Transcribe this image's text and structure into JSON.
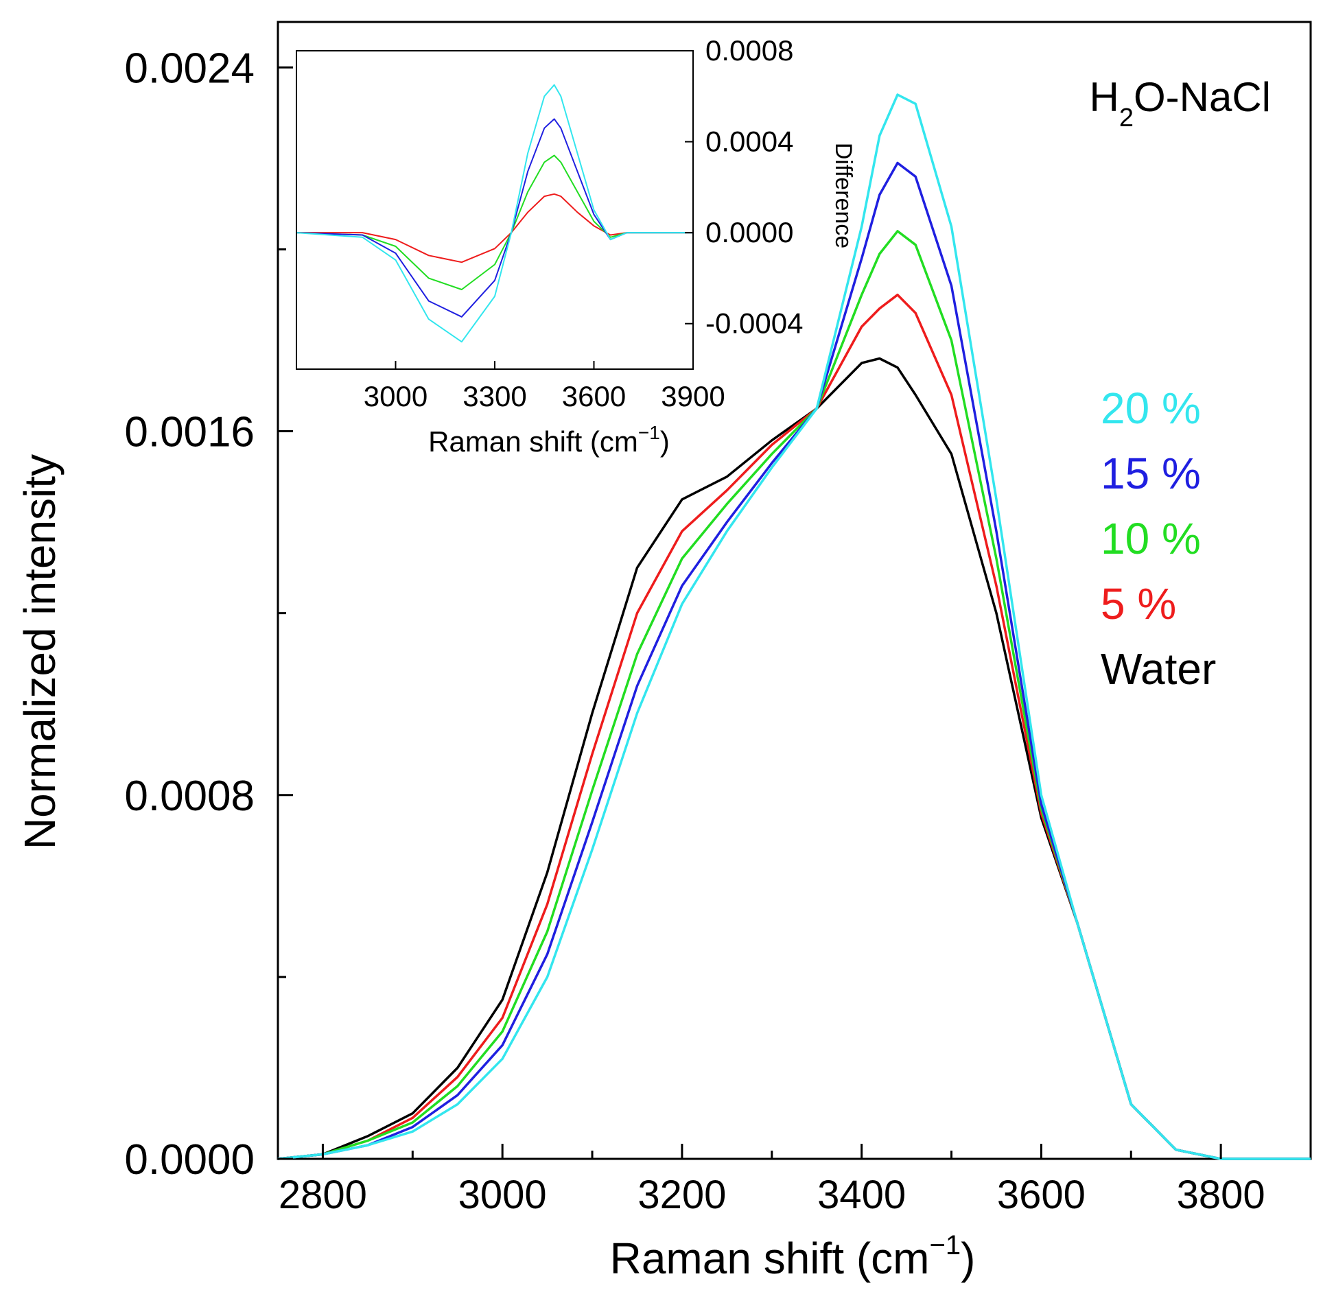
{
  "chart_data": [
    {
      "type": "line",
      "title": "",
      "xlabel": "Raman shift (cm",
      "xlabel_sup": "−1",
      "xlabel_close": ")",
      "ylabel": "Normalized intensity",
      "xlim": [
        2750,
        3900
      ],
      "ylim": [
        0.0,
        0.0025
      ],
      "x_ticks": [
        2800,
        3000,
        3200,
        3400,
        3600,
        3800
      ],
      "x_tick_labels": [
        "2800",
        "3000",
        "3200",
        "3400",
        "3600",
        "3800"
      ],
      "y_ticks": [
        0.0,
        0.0008,
        0.0016,
        0.0024
      ],
      "y_tick_labels": [
        "0.0000",
        "0.0008",
        "0.0016",
        "0.0024"
      ],
      "annotation": {
        "main": "H",
        "sub": "2",
        "rest": "O-NaCl"
      },
      "legend_position": "right",
      "series": [
        {
          "name": "20 %",
          "color": "#33e6ee",
          "x": [
            2750,
            2800,
            2850,
            2900,
            2950,
            3000,
            3050,
            3100,
            3150,
            3200,
            3250,
            3300,
            3350,
            3400,
            3420,
            3440,
            3460,
            3500,
            3550,
            3600,
            3640,
            3700,
            3750,
            3800,
            3900
          ],
          "y": [
            0.0,
            1e-05,
            3e-05,
            6e-05,
            0.00012,
            0.00022,
            0.0004,
            0.00068,
            0.00098,
            0.00122,
            0.00138,
            0.00152,
            0.00165,
            0.00205,
            0.00225,
            0.00234,
            0.00232,
            0.00205,
            0.00145,
            0.0008,
            0.00052,
            0.00012,
            2e-05,
            0.0,
            0.0
          ]
        },
        {
          "name": "15 %",
          "color": "#1f1fe0",
          "x": [
            2750,
            2800,
            2850,
            2900,
            2950,
            3000,
            3050,
            3100,
            3150,
            3200,
            3250,
            3300,
            3350,
            3400,
            3420,
            3440,
            3460,
            3500,
            3550,
            3600,
            3640,
            3700,
            3750,
            3800,
            3900
          ],
          "y": [
            0.0,
            1e-05,
            3e-05,
            7e-05,
            0.00014,
            0.00025,
            0.00045,
            0.00074,
            0.00104,
            0.00126,
            0.0014,
            0.00153,
            0.00165,
            0.00198,
            0.00212,
            0.00219,
            0.00216,
            0.00192,
            0.00138,
            0.00078,
            0.00052,
            0.00012,
            2e-05,
            0.0,
            0.0
          ]
        },
        {
          "name": "10 %",
          "color": "#22dd22",
          "x": [
            2750,
            2800,
            2850,
            2900,
            2950,
            3000,
            3050,
            3100,
            3150,
            3200,
            3250,
            3300,
            3350,
            3400,
            3420,
            3440,
            3460,
            3500,
            3550,
            3600,
            3640,
            3700,
            3750,
            3800,
            3900
          ],
          "y": [
            0.0,
            1e-05,
            4e-05,
            8e-05,
            0.00016,
            0.00028,
            0.0005,
            0.00081,
            0.00111,
            0.00132,
            0.00144,
            0.00155,
            0.00165,
            0.0019,
            0.00199,
            0.00204,
            0.00201,
            0.0018,
            0.00132,
            0.00077,
            0.00052,
            0.00012,
            2e-05,
            0.0,
            0.0
          ]
        },
        {
          "name": "5 %",
          "color": "#ee1c1c",
          "x": [
            2750,
            2800,
            2850,
            2900,
            2950,
            3000,
            3050,
            3100,
            3150,
            3200,
            3250,
            3300,
            3350,
            3400,
            3420,
            3440,
            3460,
            3500,
            3550,
            3600,
            3640,
            3700,
            3750,
            3800,
            3900
          ],
          "y": [
            0.0,
            1e-05,
            4e-05,
            9e-05,
            0.00018,
            0.00031,
            0.00056,
            0.00089,
            0.0012,
            0.00138,
            0.00147,
            0.00157,
            0.00165,
            0.00183,
            0.00187,
            0.0019,
            0.00186,
            0.00168,
            0.00126,
            0.00076,
            0.00052,
            0.00012,
            2e-05,
            0.0,
            0.0
          ]
        },
        {
          "name": "Water",
          "color": "#000000",
          "x": [
            2750,
            2800,
            2850,
            2900,
            2950,
            3000,
            3050,
            3100,
            3150,
            3200,
            3250,
            3300,
            3350,
            3400,
            3420,
            3440,
            3460,
            3500,
            3550,
            3600,
            3640,
            3700,
            3750,
            3800,
            3900
          ],
          "y": [
            0.0,
            1e-05,
            5e-05,
            0.0001,
            0.0002,
            0.00035,
            0.00063,
            0.00098,
            0.0013,
            0.00145,
            0.0015,
            0.00158,
            0.00165,
            0.00175,
            0.00176,
            0.00174,
            0.00168,
            0.00155,
            0.0012,
            0.00075,
            0.00052,
            0.00012,
            2e-05,
            0.0,
            0.0
          ]
        }
      ]
    },
    {
      "type": "line",
      "title": "",
      "xlabel": "Raman shift (cm",
      "xlabel_sup": "−1",
      "xlabel_close": ")",
      "ylabel": "Difference",
      "xlim": [
        2700,
        3900
      ],
      "ylim": [
        -0.0006,
        0.0008
      ],
      "x_ticks": [
        3000,
        3300,
        3600,
        3900
      ],
      "x_tick_labels": [
        "3000",
        "3300",
        "3600",
        "3900"
      ],
      "y_ticks": [
        -0.0004,
        0.0,
        0.0004,
        0.0008
      ],
      "y_tick_labels": [
        "-0.0004",
        "0.0000",
        "0.0004",
        "0.0008"
      ],
      "series": [
        {
          "name": "20 %",
          "color": "#33e6ee",
          "x": [
            2700,
            2900,
            3000,
            3100,
            3200,
            3300,
            3350,
            3400,
            3450,
            3480,
            3500,
            3550,
            3600,
            3650,
            3700,
            3900
          ],
          "y": [
            0.0,
            -2e-05,
            -0.00012,
            -0.00038,
            -0.00048,
            -0.00028,
            0.0,
            0.00035,
            0.0006,
            0.00065,
            0.0006,
            0.00035,
            0.0001,
            -3e-05,
            0.0,
            0.0
          ]
        },
        {
          "name": "15 %",
          "color": "#1f1fe0",
          "x": [
            2700,
            2900,
            3000,
            3100,
            3200,
            3300,
            3350,
            3400,
            3450,
            3480,
            3500,
            3550,
            3600,
            3650,
            3700,
            3900
          ],
          "y": [
            0.0,
            -1e-05,
            -9e-05,
            -0.0003,
            -0.00037,
            -0.00021,
            0.0,
            0.00027,
            0.00046,
            0.0005,
            0.00046,
            0.00027,
            8e-05,
            -3e-05,
            0.0,
            0.0
          ]
        },
        {
          "name": "10 %",
          "color": "#22dd22",
          "x": [
            2700,
            2900,
            3000,
            3100,
            3200,
            3300,
            3350,
            3400,
            3450,
            3480,
            3500,
            3550,
            3600,
            3650,
            3700,
            3900
          ],
          "y": [
            0.0,
            -1e-05,
            -6e-05,
            -0.0002,
            -0.00025,
            -0.00014,
            0.0,
            0.00018,
            0.00031,
            0.00034,
            0.00031,
            0.00018,
            5e-05,
            -2e-05,
            0.0,
            0.0
          ]
        },
        {
          "name": "5 %",
          "color": "#ee1c1c",
          "x": [
            2700,
            2900,
            3000,
            3100,
            3200,
            3300,
            3350,
            3400,
            3450,
            3480,
            3500,
            3550,
            3600,
            3650,
            3700,
            3900
          ],
          "y": [
            0.0,
            0.0,
            -3e-05,
            -0.0001,
            -0.00013,
            -7e-05,
            0.0,
            9e-05,
            0.00016,
            0.00017,
            0.00016,
            9e-05,
            3e-05,
            -1e-05,
            0.0,
            0.0
          ]
        }
      ]
    }
  ]
}
